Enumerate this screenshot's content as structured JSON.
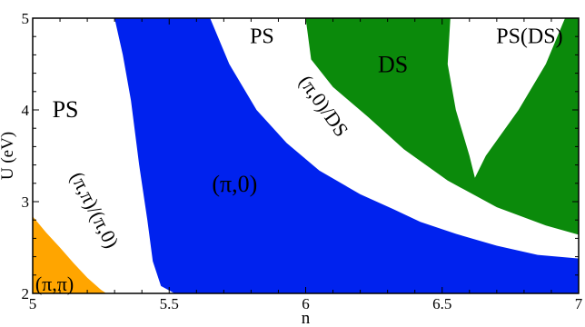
{
  "chart_data": {
    "type": "area",
    "title": "",
    "xlabel": "n",
    "ylabel": "U (eV)",
    "xlim": [
      5,
      7
    ],
    "ylim": [
      2,
      5
    ],
    "xticks": [
      "5",
      "5.5",
      "6",
      "6.5",
      "7"
    ],
    "yticks": [
      "2",
      "3",
      "4",
      "5"
    ],
    "grid": false,
    "regions": [
      {
        "label": "(π,π)",
        "color": "#ffa500",
        "polygon": [
          [
            5.0,
            2.84
          ],
          [
            5.05,
            2.66
          ],
          [
            5.1,
            2.5
          ],
          [
            5.15,
            2.33
          ],
          [
            5.2,
            2.17
          ],
          [
            5.25,
            2.04
          ],
          [
            5.27,
            2.0
          ],
          [
            5.0,
            2.0
          ]
        ]
      },
      {
        "label": "(π,0)",
        "color": "#0022ee",
        "polygon": [
          [
            5.3,
            5.0
          ],
          [
            5.65,
            5.0
          ],
          [
            5.72,
            4.5
          ],
          [
            5.82,
            4.0
          ],
          [
            5.93,
            3.64
          ],
          [
            6.05,
            3.34
          ],
          [
            6.2,
            3.08
          ],
          [
            6.32,
            2.92
          ],
          [
            6.42,
            2.78
          ],
          [
            6.55,
            2.65
          ],
          [
            6.7,
            2.52
          ],
          [
            6.85,
            2.42
          ],
          [
            7.0,
            2.38
          ],
          [
            7.0,
            2.0
          ],
          [
            5.52,
            2.0
          ],
          [
            5.47,
            2.08
          ],
          [
            5.44,
            2.35
          ],
          [
            5.42,
            2.8
          ],
          [
            5.39,
            3.4
          ],
          [
            5.36,
            4.1
          ],
          [
            5.33,
            4.6
          ]
        ]
      },
      {
        "label": "DS",
        "color": "#0b8a0b",
        "polygon": [
          [
            6.0,
            5.0
          ],
          [
            6.02,
            4.55
          ],
          [
            6.1,
            4.25
          ],
          [
            6.23,
            3.92
          ],
          [
            6.36,
            3.57
          ],
          [
            6.52,
            3.23
          ],
          [
            6.7,
            2.94
          ],
          [
            6.88,
            2.74
          ],
          [
            7.0,
            2.64
          ],
          [
            7.0,
            5.0
          ],
          [
            6.95,
            5.0
          ],
          [
            6.88,
            4.5
          ],
          [
            6.78,
            4.0
          ],
          [
            6.66,
            3.5
          ],
          [
            6.62,
            3.26
          ],
          [
            6.6,
            3.5
          ],
          [
            6.55,
            4.0
          ],
          [
            6.52,
            4.5
          ],
          [
            6.53,
            5.0
          ]
        ]
      }
    ],
    "annotations": [
      {
        "text": "PS",
        "x": 5.12,
        "y": 3.98
      },
      {
        "text": "(π,π)/(π,0)",
        "x": 5.22,
        "y": 2.9
      },
      {
        "text": "(π,π)",
        "x": 5.08,
        "y": 2.08
      },
      {
        "text": "(π,0)",
        "x": 5.74,
        "y": 3.17
      },
      {
        "text": "PS",
        "x": 5.84,
        "y": 4.78
      },
      {
        "text": "(π,0)/DS",
        "x": 6.06,
        "y": 4.03
      },
      {
        "text": "DS",
        "x": 6.32,
        "y": 4.47
      },
      {
        "text": "PS(DS)",
        "x": 6.82,
        "y": 4.78
      }
    ]
  },
  "colors": {
    "axis": "#000000",
    "background": "#ffffff"
  }
}
